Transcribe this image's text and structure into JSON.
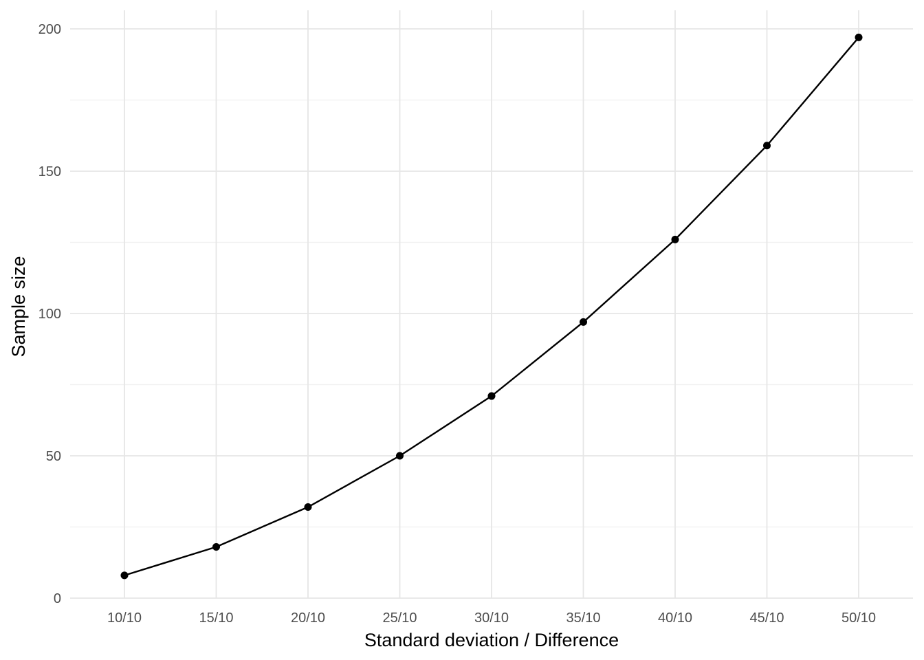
{
  "chart_data": {
    "type": "line",
    "title": "",
    "xlabel": "Standard deviation / Difference",
    "ylabel": "Sample size",
    "categories": [
      "10/10",
      "15/10",
      "20/10",
      "25/10",
      "30/10",
      "35/10",
      "40/10",
      "45/10",
      "50/10"
    ],
    "series": [
      {
        "values": [
          8,
          18,
          32,
          50,
          71,
          97,
          126,
          159,
          197
        ]
      }
    ],
    "ylim": [
      0,
      200
    ],
    "yticks": [
      0,
      50,
      100,
      150,
      200
    ],
    "y_minor_ticks": [
      25,
      75,
      125,
      175
    ],
    "grid": true,
    "legend": "none",
    "colors": {
      "line": "#000000",
      "point": "#000000",
      "grid": "#ebebeb"
    }
  }
}
